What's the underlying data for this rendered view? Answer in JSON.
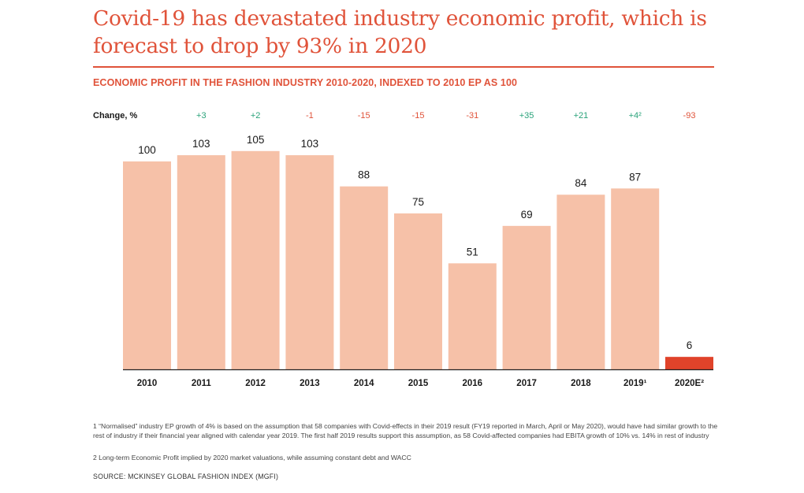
{
  "title": "Covid-19 has devastated industry economic profit, which is forecast to drop by 93% in 2020",
  "subtitle": "ECONOMIC PROFIT IN THE FASHION INDUSTRY 2010-2020, INDEXED TO 2010 EP AS 100",
  "change_label": "Change, %",
  "footnotes": {
    "note1": "1 “Normalised” industry EP growth of 4% is based on the assumption that 58 companies with Covid-effects in their 2019 result (FY19 reported in March, April or May 2020), would have had similar growth to the rest of industry if their financial year aligned with calendar year 2019. The first half 2019 results support this assumption, as 58 Covid-affected companies had EBITA growth of 10% vs. 14% in rest of industry",
    "note2": "2 Long-term Economic Profit implied by 2020 market valuations, while assuming constant debt and WACC"
  },
  "source": "SOURCE: MCKINSEY GLOBAL FASHION INDEX (MGFI)",
  "colors": {
    "accent": "#e0533a",
    "bar": "#f6c1a8",
    "bar_highlight": "#e0432a",
    "positive": "#2aa37a",
    "negative": "#e0533a"
  },
  "chart_data": {
    "type": "bar",
    "title": "ECONOMIC PROFIT IN THE FASHION INDUSTRY 2010-2020, INDEXED TO 2010 EP AS 100",
    "categories": [
      "2010",
      "2011",
      "2012",
      "2013",
      "2014",
      "2015",
      "2016",
      "2017",
      "2018",
      "2019¹",
      "2020E²"
    ],
    "values": [
      100,
      103,
      105,
      103,
      88,
      75,
      51,
      69,
      84,
      87,
      6
    ],
    "value_labels": [
      "100",
      "103",
      "105",
      "103",
      "88",
      "75",
      "51",
      "69",
      "84",
      "87",
      "6"
    ],
    "change_pct": [
      "+3",
      "+2",
      "-1",
      "-15",
      "-15",
      "-31",
      "+35",
      "+21",
      "+4²",
      "-93"
    ],
    "change_sign": [
      "positive",
      "positive",
      "negative",
      "negative",
      "negative",
      "negative",
      "positive",
      "positive",
      "positive",
      "negative"
    ],
    "highlight_index": 10,
    "ylim": [
      0,
      105
    ],
    "grid": false,
    "xlabel": "",
    "ylabel": ""
  }
}
